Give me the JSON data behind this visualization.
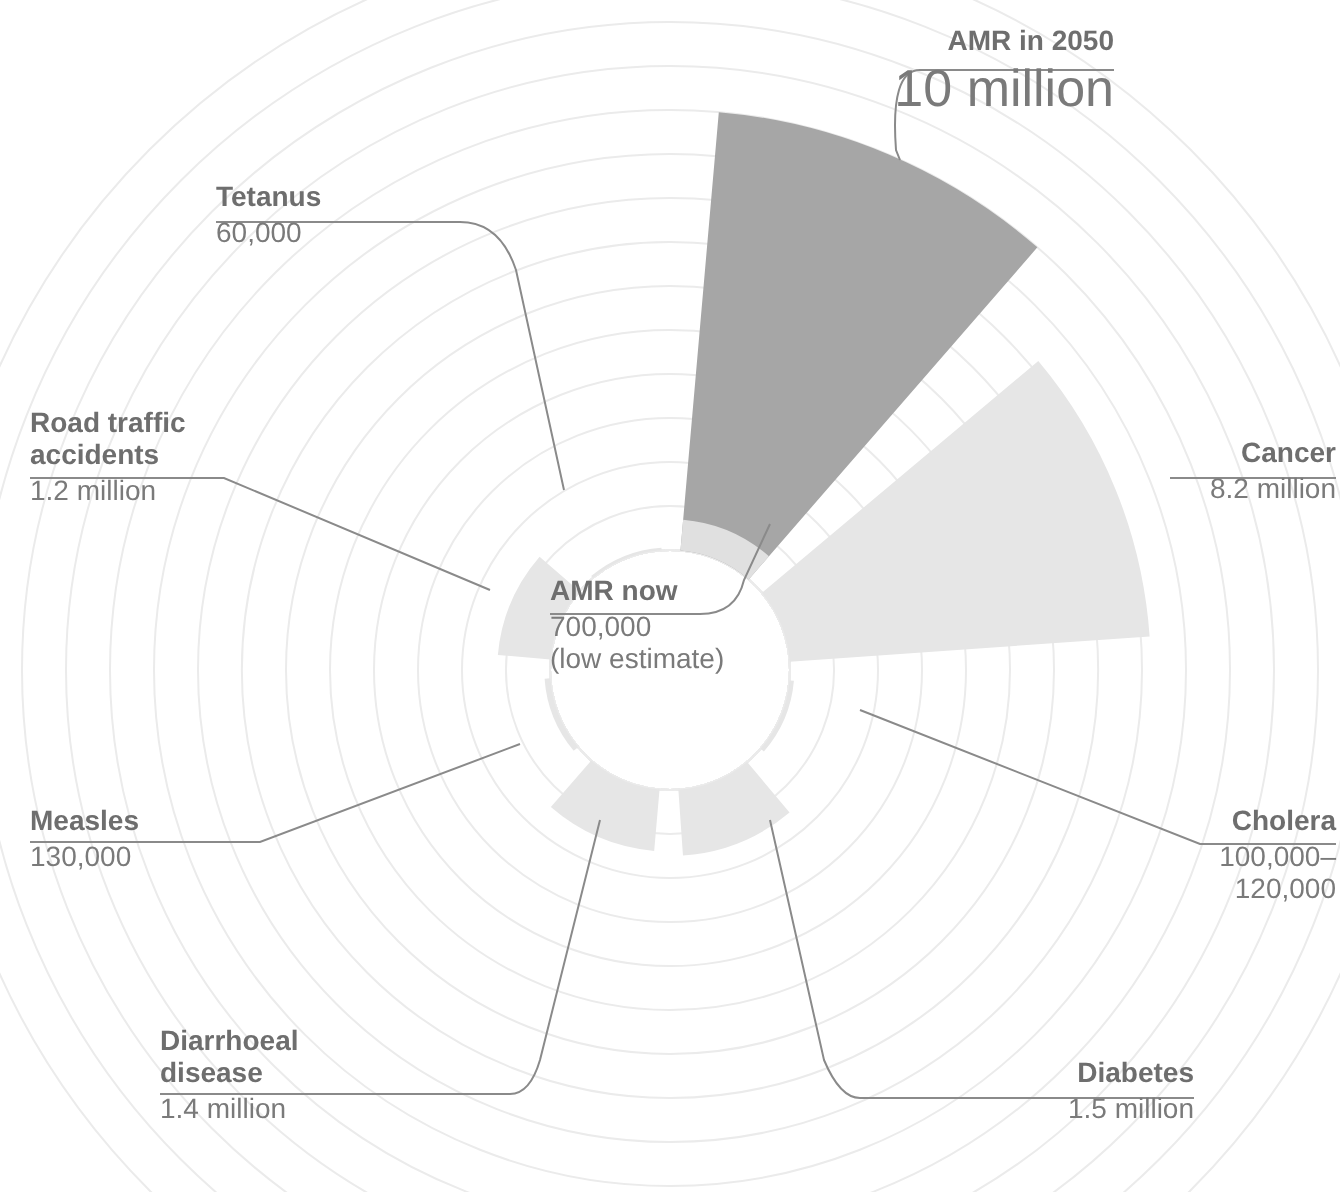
{
  "chart_data": {
    "type": "other",
    "categories": [
      "AMR in 2050",
      "Cancer",
      "Cholera",
      "Diabetes",
      "Diarrhoeal disease",
      "Measles",
      "Road traffic accidents",
      "Tetanus",
      "AMR now"
    ],
    "values": [
      10000000,
      8200000,
      100000,
      1500000,
      1400000,
      130000,
      1200000,
      60000,
      700000
    ],
    "value_labels": [
      "10 million",
      "8.2 million",
      "100,000–120,000",
      "1.5 million",
      "1.4 million",
      "130,000",
      "1.2 million",
      "60,000",
      "700,000\n(low estimate)"
    ],
    "colors": [
      "#a6a6a6",
      "#e6e6e6",
      "#e6e6e6",
      "#e6e6e6",
      "#e6e6e6",
      "#e6e6e6",
      "#e6e6e6",
      "#e6e6e6",
      "#e0e0e0"
    ]
  }
}
